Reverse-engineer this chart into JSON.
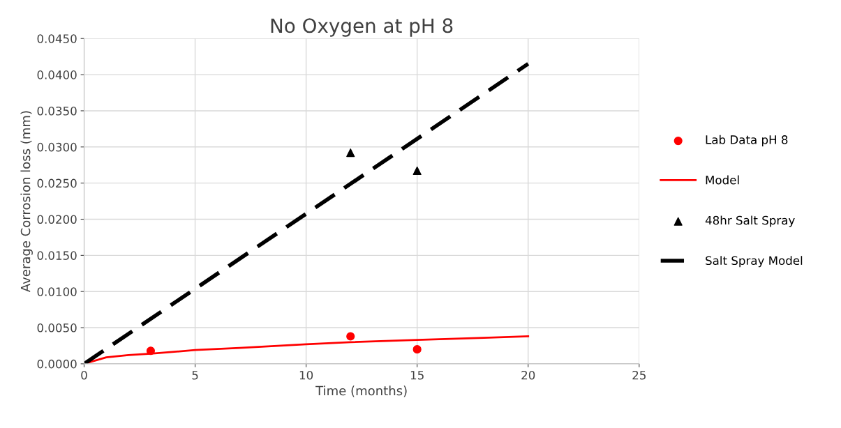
{
  "chart_data": {
    "type": "line",
    "title": "No Oxygen at pH 8",
    "xlabel": "Time (months)",
    "ylabel": "Average Corrosion loss (mm)",
    "xlim": [
      0,
      25
    ],
    "xticks": [
      0,
      5,
      10,
      15,
      20,
      25
    ],
    "ylim": [
      0,
      0.045
    ],
    "yticks": [
      {
        "value": 0,
        "label": "0.0000"
      },
      {
        "value": 0.005,
        "label": "0.0050"
      },
      {
        "value": 0.01,
        "label": "0.0100"
      },
      {
        "value": 0.015,
        "label": "0.0150"
      },
      {
        "value": 0.02,
        "label": "0.0200"
      },
      {
        "value": 0.025,
        "label": "0.0250"
      },
      {
        "value": 0.03,
        "label": "0.0300"
      },
      {
        "value": 0.035,
        "label": "0.0350"
      },
      {
        "value": 0.04,
        "label": "0.0400"
      },
      {
        "value": 0.045,
        "label": "0.0450"
      }
    ],
    "grid": true,
    "legend": "right",
    "series": [
      {
        "name": "Lab Data pH 8",
        "type": "scatter",
        "marker": "circle",
        "color": "#ff0000",
        "x": [
          3,
          12,
          15
        ],
        "values": [
          0.0018,
          0.0038,
          0.002
        ]
      },
      {
        "name": "Model",
        "type": "line",
        "marker": "none",
        "line_style": "solid",
        "color": "#ff0000",
        "x": [
          0,
          1,
          2,
          3,
          5,
          7,
          10,
          12,
          15,
          18,
          20
        ],
        "values": [
          0,
          0.0009,
          0.0012,
          0.0014,
          0.0019,
          0.0022,
          0.0027,
          0.003,
          0.0033,
          0.0036,
          0.0038
        ]
      },
      {
        "name": "48hr Salt Spray",
        "type": "scatter",
        "marker": "triangle",
        "color": "#000000",
        "x": [
          12,
          15
        ],
        "values": [
          0.0292,
          0.0267
        ]
      },
      {
        "name": "Salt Spray Model",
        "type": "line",
        "marker": "none",
        "line_style": "dashed",
        "color": "#000000",
        "x": [
          0,
          20
        ],
        "values": [
          0,
          0.0415
        ]
      }
    ]
  }
}
